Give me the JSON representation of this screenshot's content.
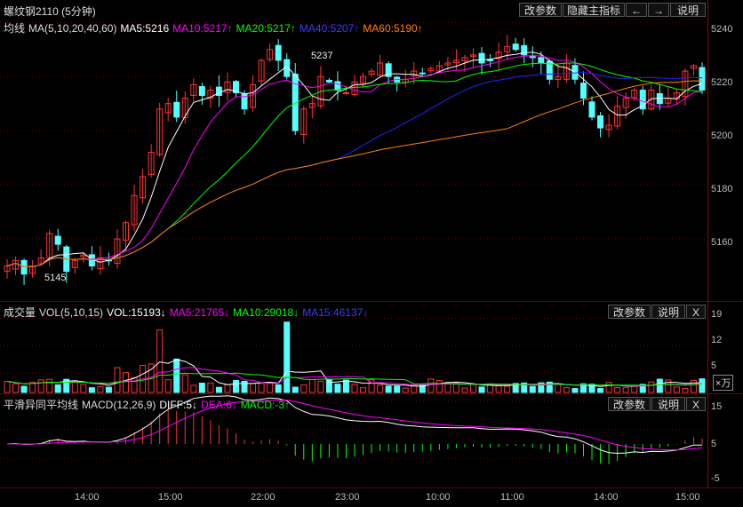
{
  "top": {
    "title": "螺纹钢2110 (5分钟)",
    "buttons": {
      "params": "改参数",
      "hide_main": "隐藏主指标",
      "prev": "←",
      "next": "→",
      "help": "说明"
    }
  },
  "price_pane": {
    "legend": {
      "label": "均线",
      "params": "MA(5,10,20,40,60)",
      "ma5": "MA5:5216",
      "ma10": "MA10:5217↑",
      "ma20": "MA20:5217↑",
      "ma40": "MA40:5207↑",
      "ma60": "MA60:5190↑"
    },
    "yticks": [
      "5240",
      "5220",
      "5200",
      "5180",
      "5160"
    ],
    "high_label": "5237",
    "low_label": "5145"
  },
  "vol_pane": {
    "legend": {
      "label": "成交量",
      "params": "VOL(5,10,15)",
      "vol": "VOL:15193↓",
      "ma5": "MA5:21765↓",
      "ma10": "MA10:29018↓",
      "ma15": "MA15:46137↓"
    },
    "buttons": {
      "params": "改参数",
      "help": "说明",
      "close": "X"
    },
    "yticks": [
      "19",
      "12",
      "5"
    ],
    "unit": "×万"
  },
  "macd_pane": {
    "legend": {
      "label": "平滑异同平均线",
      "params": "MACD(12,26,9)",
      "diff": "DIFF:5↓",
      "dea": "DEA:6↓",
      "macd": "MACD:-3↑"
    },
    "buttons": {
      "params": "改参数",
      "help": "说明",
      "close": "X"
    },
    "yticks": [
      "15",
      "5",
      "-5"
    ]
  },
  "xaxis": {
    "labels": [
      "14:00",
      "15:00",
      "22:00",
      "23:00",
      "10:00",
      "11:00",
      "14:00",
      "15:00"
    ]
  },
  "colors": {
    "up": "#ff3232",
    "down": "#54ffff",
    "ma5": "#ffffff",
    "ma10": "#ff00ff",
    "ma20": "#00ff00",
    "ma40": "#2222ff",
    "ma60": "#ff8000",
    "grid": "#6b0000"
  },
  "chart_data": {
    "type": "candlestick",
    "price_range": [
      5140,
      5245
    ],
    "closes": [
      5150,
      5152,
      5147,
      5150,
      5153,
      5162,
      5158,
      5148,
      5152,
      5154,
      5150,
      5153,
      5152,
      5160,
      5166,
      5176,
      5183,
      5192,
      5208,
      5210,
      5205,
      5212,
      5217,
      5213,
      5215,
      5213,
      5218,
      5214,
      5208,
      5217,
      5226,
      5230,
      5226,
      5220,
      5200,
      5208,
      5210,
      5220,
      5218,
      5215,
      5214,
      5218,
      5220,
      5222,
      5225,
      5220,
      5218,
      5219,
      5222,
      5221,
      5223,
      5224,
      5225,
      5226,
      5227,
      5228,
      5225,
      5226,
      5229,
      5231,
      5230,
      5228,
      5227,
      5225,
      5219,
      5220,
      5225,
      5219,
      5212,
      5205,
      5201,
      5202,
      5209,
      5212,
      5215,
      5208,
      5215,
      5210,
      5212,
      5214,
      5222,
      5224,
      5215
    ]
  }
}
